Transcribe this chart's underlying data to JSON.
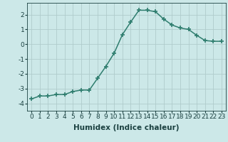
{
  "x": [
    0,
    1,
    2,
    3,
    4,
    5,
    6,
    7,
    8,
    9,
    10,
    11,
    12,
    13,
    14,
    15,
    16,
    17,
    18,
    19,
    20,
    21,
    22,
    23
  ],
  "y": [
    -3.7,
    -3.5,
    -3.5,
    -3.4,
    -3.4,
    -3.2,
    -3.1,
    -3.1,
    -2.3,
    -1.5,
    -0.6,
    0.65,
    1.5,
    2.3,
    2.3,
    2.2,
    1.7,
    1.3,
    1.1,
    1.0,
    0.6,
    0.25,
    0.2,
    0.2
  ],
  "line_color": "#2e7d6e",
  "marker": "+",
  "markersize": 4.0,
  "markeredgewidth": 1.2,
  "linewidth": 1.1,
  "xlabel": "Humidex (Indice chaleur)",
  "ylim": [
    -4.5,
    2.8
  ],
  "xlim": [
    -0.5,
    23.5
  ],
  "yticks": [
    -4,
    -3,
    -2,
    -1,
    0,
    1,
    2
  ],
  "xtick_labels": [
    "0",
    "1",
    "2",
    "3",
    "4",
    "5",
    "6",
    "7",
    "8",
    "9",
    "10",
    "11",
    "12",
    "13",
    "14",
    "15",
    "16",
    "17",
    "18",
    "19",
    "20",
    "21",
    "22",
    "23"
  ],
  "bg_color": "#cce8e8",
  "grid_color": "#b0cccc",
  "tick_fontsize": 6.5,
  "xlabel_fontsize": 7.5,
  "font_color": "#1a4040"
}
